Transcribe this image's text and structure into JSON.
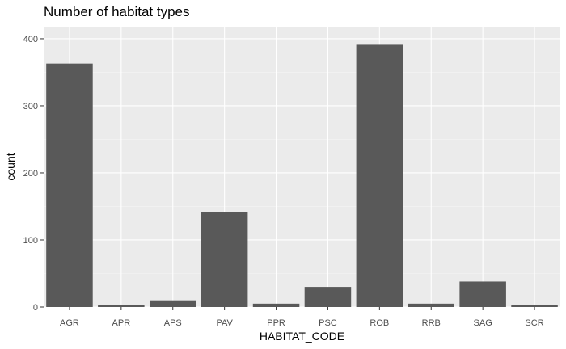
{
  "chart_data": {
    "type": "bar",
    "title": "Number of habitat types",
    "xlabel": "HABITAT_CODE",
    "ylabel": "count",
    "categories": [
      "AGR",
      "APR",
      "APS",
      "PAV",
      "PPR",
      "PSC",
      "ROB",
      "RRB",
      "SAG",
      "SCR"
    ],
    "values": [
      363,
      3,
      10,
      142,
      5,
      30,
      391,
      5,
      38,
      3
    ],
    "ylim": [
      0,
      418
    ],
    "yticks": [
      0,
      100,
      200,
      300,
      400
    ],
    "grid": true,
    "legend": "none",
    "colors": {
      "bar": "#595959",
      "panel": "#ebebeb",
      "grid_major": "#ffffff",
      "grid_minor": "#f5f5f5"
    }
  }
}
